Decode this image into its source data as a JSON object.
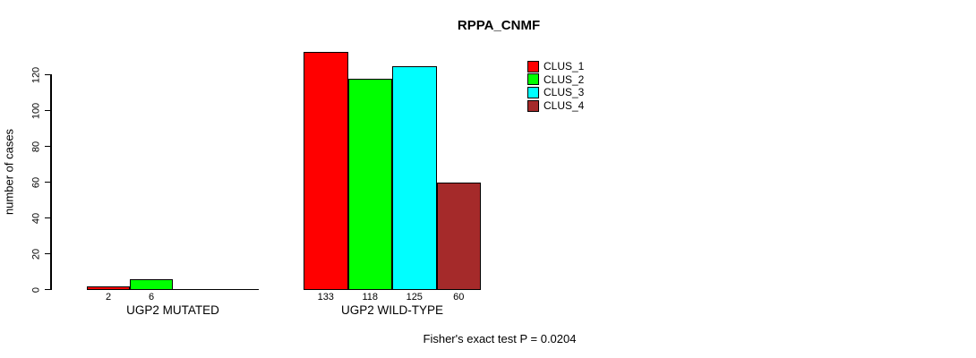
{
  "chart_data": {
    "type": "bar",
    "title": "RPPA_CNMF",
    "ylabel": "number of cases",
    "xlabel": "",
    "ylim": [
      0,
      133
    ],
    "yticks": [
      0,
      20,
      40,
      60,
      80,
      100,
      120
    ],
    "grid": false,
    "legend_position": "top-right",
    "groups": [
      "UGP2 MUTATED",
      "UGP2 WILD-TYPE"
    ],
    "series": [
      {
        "name": "CLUS_1",
        "color": "#FF0000",
        "values": [
          2,
          133
        ]
      },
      {
        "name": "CLUS_2",
        "color": "#00FF00",
        "values": [
          6,
          118
        ]
      },
      {
        "name": "CLUS_3",
        "color": "#00FFFF",
        "values": [
          0,
          125
        ]
      },
      {
        "name": "CLUS_4",
        "color": "#A52A2A",
        "values": [
          0,
          60
        ]
      }
    ],
    "bar_value_labels": [
      [
        "2",
        "6",
        "",
        ""
      ],
      [
        "133",
        "118",
        "125",
        "60"
      ]
    ],
    "annotation": "Fisher's exact test P = 0.0204"
  }
}
